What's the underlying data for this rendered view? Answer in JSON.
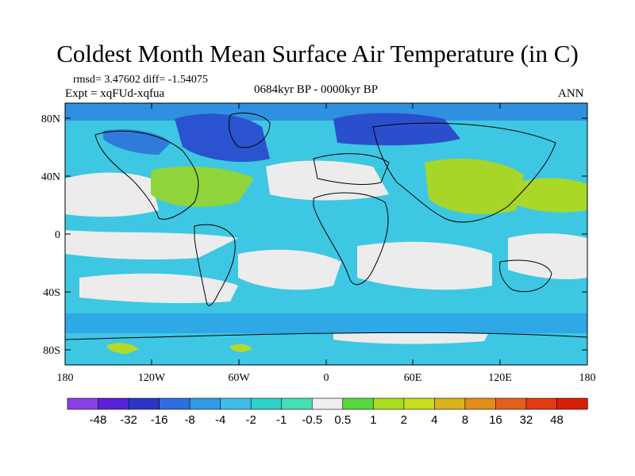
{
  "title": "Coldest Month Mean Surface Air Temperature (in C)",
  "stats_line": "rmsd= 3.47602  diff= -1.54075",
  "expt_line": "Expt = xqFUd-xqfua",
  "period": "0684kyr BP - 0000kyr BP",
  "season": "ANN",
  "map": {
    "lat_ticks": [
      "80N",
      "40N",
      "0",
      "40S",
      "80S"
    ],
    "lon_ticks": [
      "180",
      "120W",
      "60W",
      "0",
      "60E",
      "120E",
      "180"
    ]
  },
  "colorbar": {
    "labels": [
      "-48",
      "-32",
      "-16",
      "-8",
      "-4",
      "-2",
      "-1",
      "-0.5",
      "0.5",
      "1",
      "2",
      "4",
      "8",
      "16",
      "32",
      "48"
    ],
    "colors": [
      "#8a3fe6",
      "#5a22d8",
      "#2b36c8",
      "#2f6ce0",
      "#2f9be6",
      "#3fbcec",
      "#2fd2c8",
      "#44e0b4",
      "#eeeeee",
      "#57d83e",
      "#aadd22",
      "#c8dd22",
      "#d8b41c",
      "#e28c1a",
      "#e4601a",
      "#e23a12",
      "#d81e08"
    ]
  },
  "legend_colors": {
    "ocean_background": "#3ec7e2",
    "near_zero": "#e8e8e8",
    "cold_anomaly": "#2b36c8",
    "warm_anomaly": "#9fd42a"
  }
}
